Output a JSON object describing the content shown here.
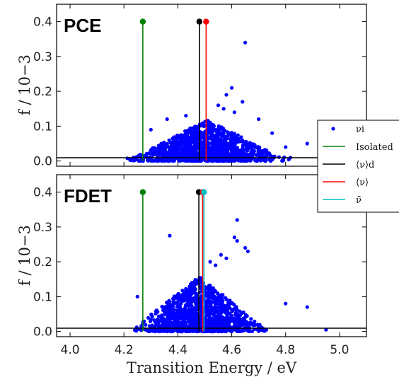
{
  "chart_data": {
    "type": "scatter",
    "xlabel": "Transition Energy / eV",
    "xlim": [
      3.95,
      5.1
    ],
    "xticks": [
      "4.0",
      "4.2",
      "4.4",
      "4.6",
      "4.8",
      "5.0"
    ],
    "xtick_values": [
      4.0,
      4.2,
      4.4,
      4.6,
      4.8,
      5.0
    ],
    "legend": {
      "placement": "right, between panels",
      "entries": [
        {
          "label": "νi",
          "color": "#0000ff",
          "kind": "marker"
        },
        {
          "label": "Isolated",
          "color": "#008000",
          "kind": "line"
        },
        {
          "label": "⟨ν⟩d",
          "color": "#000000",
          "kind": "line"
        },
        {
          "label": "⟨ν⟩",
          "color": "#ff0000",
          "kind": "line"
        },
        {
          "label": "ν̄",
          "color": "#00bfbf",
          "kind": "line"
        }
      ]
    },
    "panels": [
      {
        "label": "PCE",
        "ylabel": "f / 10−3",
        "ylim": [
          -0.015,
          0.45
        ],
        "yticks": [
          "0.0",
          "0.1",
          "0.2",
          "0.3",
          "0.4"
        ],
        "ytick_values": [
          0.0,
          0.1,
          0.2,
          0.3,
          0.4
        ],
        "stems": [
          {
            "name": "Isolated",
            "x": 4.27,
            "y": 0.4,
            "color": "#008000"
          },
          {
            "name": "⟨ν⟩d",
            "x": 4.48,
            "y": 0.4,
            "color": "#000000"
          },
          {
            "name": "⟨ν⟩",
            "x": 4.505,
            "y": 0.4,
            "color": "#ff0000"
          }
        ],
        "cloud": {
          "center": 4.51,
          "spread": 0.14,
          "xmin": 4.2,
          "xmax": 4.82,
          "ymax": 0.12,
          "count": 1300,
          "seed": 7
        },
        "outliers": [
          [
            4.65,
            0.34
          ],
          [
            4.6,
            0.21
          ],
          [
            4.58,
            0.19
          ],
          [
            4.64,
            0.17
          ],
          [
            4.55,
            0.16
          ],
          [
            4.57,
            0.15
          ],
          [
            4.43,
            0.13
          ],
          [
            4.61,
            0.14
          ],
          [
            4.7,
            0.12
          ],
          [
            4.36,
            0.12
          ],
          [
            4.88,
            0.05
          ],
          [
            4.75,
            0.08
          ],
          [
            4.3,
            0.09
          ],
          [
            4.8,
            0.04
          ]
        ]
      },
      {
        "label": "FDET",
        "ylabel": "f / 10−3",
        "ylim": [
          -0.015,
          0.45
        ],
        "yticks": [
          "0.0",
          "0.1",
          "0.2",
          "0.3",
          "0.4"
        ],
        "ytick_values": [
          0.0,
          0.1,
          0.2,
          0.3,
          0.4
        ],
        "stems": [
          {
            "name": "Isolated",
            "x": 4.27,
            "y": 0.4,
            "color": "#008000"
          },
          {
            "name": "⟨ν⟩d",
            "x": 4.478,
            "y": 0.4,
            "color": "#000000"
          },
          {
            "name": "⟨ν⟩",
            "x": 4.492,
            "y": 0.4,
            "color": "#ff0000"
          },
          {
            "name": "ν̄",
            "x": 4.497,
            "y": 0.4,
            "color": "#00bfbf"
          }
        ],
        "cloud": {
          "center": 4.48,
          "spread": 0.12,
          "xmin": 4.24,
          "xmax": 4.78,
          "ymax": 0.16,
          "count": 1300,
          "seed": 13
        },
        "outliers": [
          [
            4.62,
            0.32
          ],
          [
            4.37,
            0.275
          ],
          [
            4.61,
            0.27
          ],
          [
            4.62,
            0.26
          ],
          [
            4.65,
            0.24
          ],
          [
            4.66,
            0.23
          ],
          [
            4.58,
            0.21
          ],
          [
            4.52,
            0.2
          ],
          [
            4.88,
            0.07
          ],
          [
            4.95,
            0.005
          ],
          [
            4.8,
            0.08
          ],
          [
            4.25,
            0.1
          ],
          [
            4.56,
            0.22
          ],
          [
            4.54,
            0.19
          ]
        ]
      }
    ]
  }
}
